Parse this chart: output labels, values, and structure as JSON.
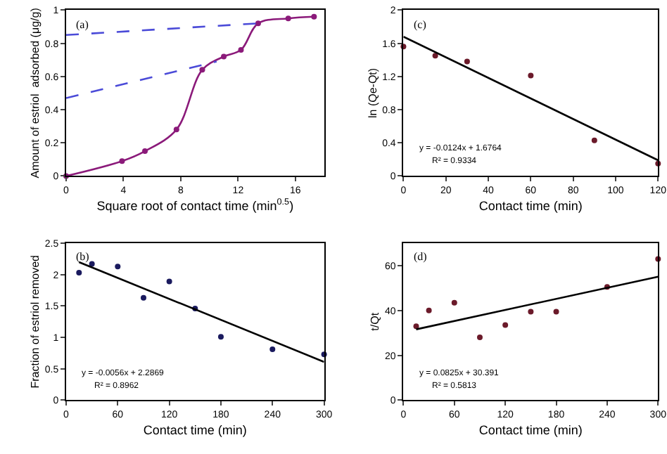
{
  "chart_data": [
    {
      "type": "line",
      "xlabel": "Square root of contact time (min$^{0.5}$)",
      "ylabel": "Amount of estriol  adsorbed (μg/g)",
      "annotations": [
        "(a)"
      ],
      "xlim": [
        0,
        18
      ],
      "xticks": [
        0,
        4,
        8,
        12,
        16
      ],
      "ylim": [
        0,
        1
      ],
      "yticks": [
        0,
        0.2,
        0.4,
        0.6,
        0.8,
        1
      ],
      "series": [
        {
          "color": "#8b1a7a",
          "marker": "circle",
          "x": [
            0,
            3.9,
            5.5,
            7.7,
            9.5,
            11,
            12.2,
            13.4,
            15.5,
            17.3
          ],
          "values": [
            0,
            0.09,
            0.15,
            0.28,
            0.64,
            0.72,
            0.76,
            0.92,
            0.95,
            0.96
          ]
        },
        {
          "color": "#4b4bd8",
          "line_style": "dashed",
          "marker": "none",
          "x": [
            0,
            13.4
          ],
          "values": [
            0.85,
            0.92
          ]
        },
        {
          "color": "#4b4bd8",
          "line_style": "dashed",
          "marker": "none",
          "x": [
            0,
            10.5
          ],
          "values": [
            0.47,
            0.69
          ]
        }
      ]
    },
    {
      "type": "scatter",
      "xlabel": "Contact time (min)",
      "ylabel": "ln (Qe-Qt)",
      "annotations": [
        "(c)",
        "y = -0.0124x + 1.6764",
        "R² = 0.9334"
      ],
      "xlim": [
        0,
        120
      ],
      "xticks": [
        0,
        20,
        40,
        60,
        80,
        100,
        120
      ],
      "ylim": [
        0,
        2
      ],
      "yticks": [
        0,
        0.4,
        0.8,
        1.2,
        1.6,
        2
      ],
      "series": [
        {
          "color": "#6b1a2a",
          "marker": "circle",
          "x": [
            0,
            15,
            30,
            60,
            90,
            120
          ],
          "values": [
            1.56,
            1.45,
            1.38,
            1.21,
            0.43,
            0.15
          ]
        },
        {
          "type": "line",
          "color": "#000000",
          "marker": "none",
          "x": [
            0,
            120
          ],
          "values": [
            1.68,
            0.19
          ]
        }
      ]
    },
    {
      "type": "scatter",
      "xlabel": "Contact time (min)",
      "ylabel": "Fraction of estriol removed",
      "annotations": [
        "(b)",
        "y = -0.0056x + 2.2869",
        "R² = 0.8962"
      ],
      "xlim": [
        0,
        300
      ],
      "xticks": [
        0,
        60,
        120,
        180,
        240,
        300
      ],
      "ylim": [
        0,
        2.5
      ],
      "yticks": [
        0,
        0.5,
        1,
        1.5,
        2,
        2.5
      ],
      "series": [
        {
          "color": "#1a1a5e",
          "marker": "circle",
          "x": [
            15,
            30,
            60,
            90,
            120,
            150,
            180,
            240,
            300
          ],
          "values": [
            2.03,
            2.17,
            2.13,
            1.63,
            1.89,
            1.46,
            1.01,
            0.81,
            0.73
          ]
        },
        {
          "type": "line",
          "color": "#000000",
          "marker": "none",
          "x": [
            15,
            300
          ],
          "values": [
            2.2,
            0.61
          ]
        }
      ]
    },
    {
      "type": "scatter",
      "xlabel": "Contact time (min)",
      "ylabel": "t/Qt",
      "annotations": [
        "(d)",
        "y = 0.0825x + 30.391",
        "R² = 0.5813"
      ],
      "xlim": [
        0,
        300
      ],
      "xticks": [
        0,
        60,
        120,
        180,
        240,
        300
      ],
      "ylim": [
        0,
        70
      ],
      "yticks": [
        0,
        20,
        40,
        60
      ],
      "series": [
        {
          "color": "#6b1a2a",
          "marker": "circle",
          "x": [
            15,
            30,
            60,
            90,
            120,
            150,
            180,
            240,
            300
          ],
          "values": [
            33,
            40,
            43.5,
            28,
            33.5,
            39.5,
            39.5,
            50.5,
            63
          ]
        },
        {
          "type": "line",
          "color": "#000000",
          "marker": "none",
          "x": [
            15,
            300
          ],
          "values": [
            31.6,
            55.1
          ]
        }
      ]
    }
  ]
}
